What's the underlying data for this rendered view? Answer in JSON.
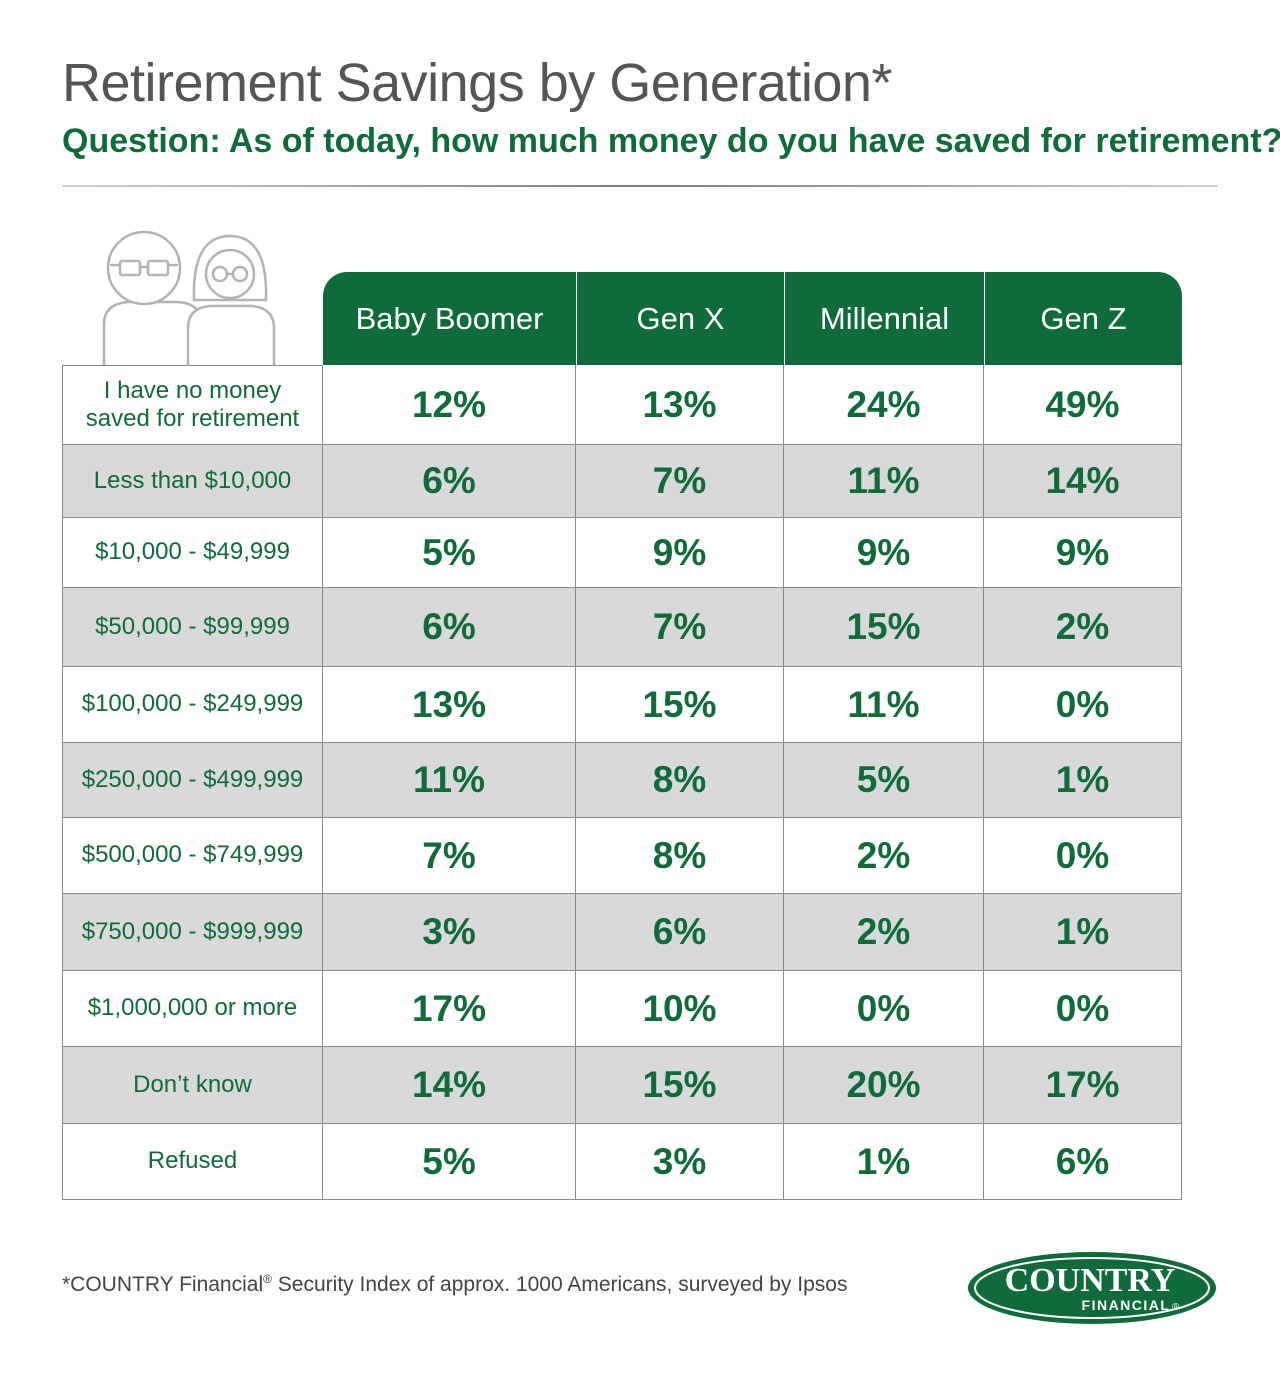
{
  "title": "Retirement Savings by Generation*",
  "subtitle": "Question:  As of today, how much money do you have saved for retirement?",
  "footnote": {
    "pre": "*COUNTRY Financial",
    "mark": "®",
    "post": " Security Index of approx. 1000 Americans, surveyed by Ipsos"
  },
  "logo": {
    "line1": "COUNTRY",
    "line2": "FINANCIAL",
    "mark": "®"
  },
  "colors": {
    "brand_green": "#0f6b3a",
    "row_shade": "#d9d9d9",
    "grid_line": "#8a8a8a"
  },
  "icon": "couple-icon",
  "chart_data": {
    "type": "table",
    "columns": [
      "Baby Boomer",
      "Gen X",
      "Millennial",
      "Gen Z"
    ],
    "rows": [
      {
        "label": "I have no money saved for retirement",
        "values": [
          "12%",
          "13%",
          "24%",
          "49%"
        ]
      },
      {
        "label": "Less than $10,000",
        "values": [
          "6%",
          "7%",
          "11%",
          "14%"
        ]
      },
      {
        "label": "$10,000 - $49,999",
        "values": [
          "5%",
          "9%",
          "9%",
          "9%"
        ]
      },
      {
        "label": "$50,000 - $99,999",
        "values": [
          "6%",
          "7%",
          "15%",
          "2%"
        ]
      },
      {
        "label": "$100,000 - $249,999",
        "values": [
          "13%",
          "15%",
          "11%",
          "0%"
        ]
      },
      {
        "label": "$250,000 - $499,999",
        "values": [
          "11%",
          "8%",
          "5%",
          "1%"
        ]
      },
      {
        "label": "$500,000 - $749,999",
        "values": [
          "7%",
          "8%",
          "2%",
          "0%"
        ]
      },
      {
        "label": "$750,000 - $999,999",
        "values": [
          "3%",
          "6%",
          "2%",
          "1%"
        ]
      },
      {
        "label": "$1,000,000 or more",
        "values": [
          "17%",
          "10%",
          "0%",
          "0%"
        ]
      },
      {
        "label": "Don’t know",
        "values": [
          "14%",
          "15%",
          "20%",
          "17%"
        ]
      },
      {
        "label": "Refused",
        "values": [
          "5%",
          "3%",
          "1%",
          "6%"
        ]
      }
    ]
  }
}
